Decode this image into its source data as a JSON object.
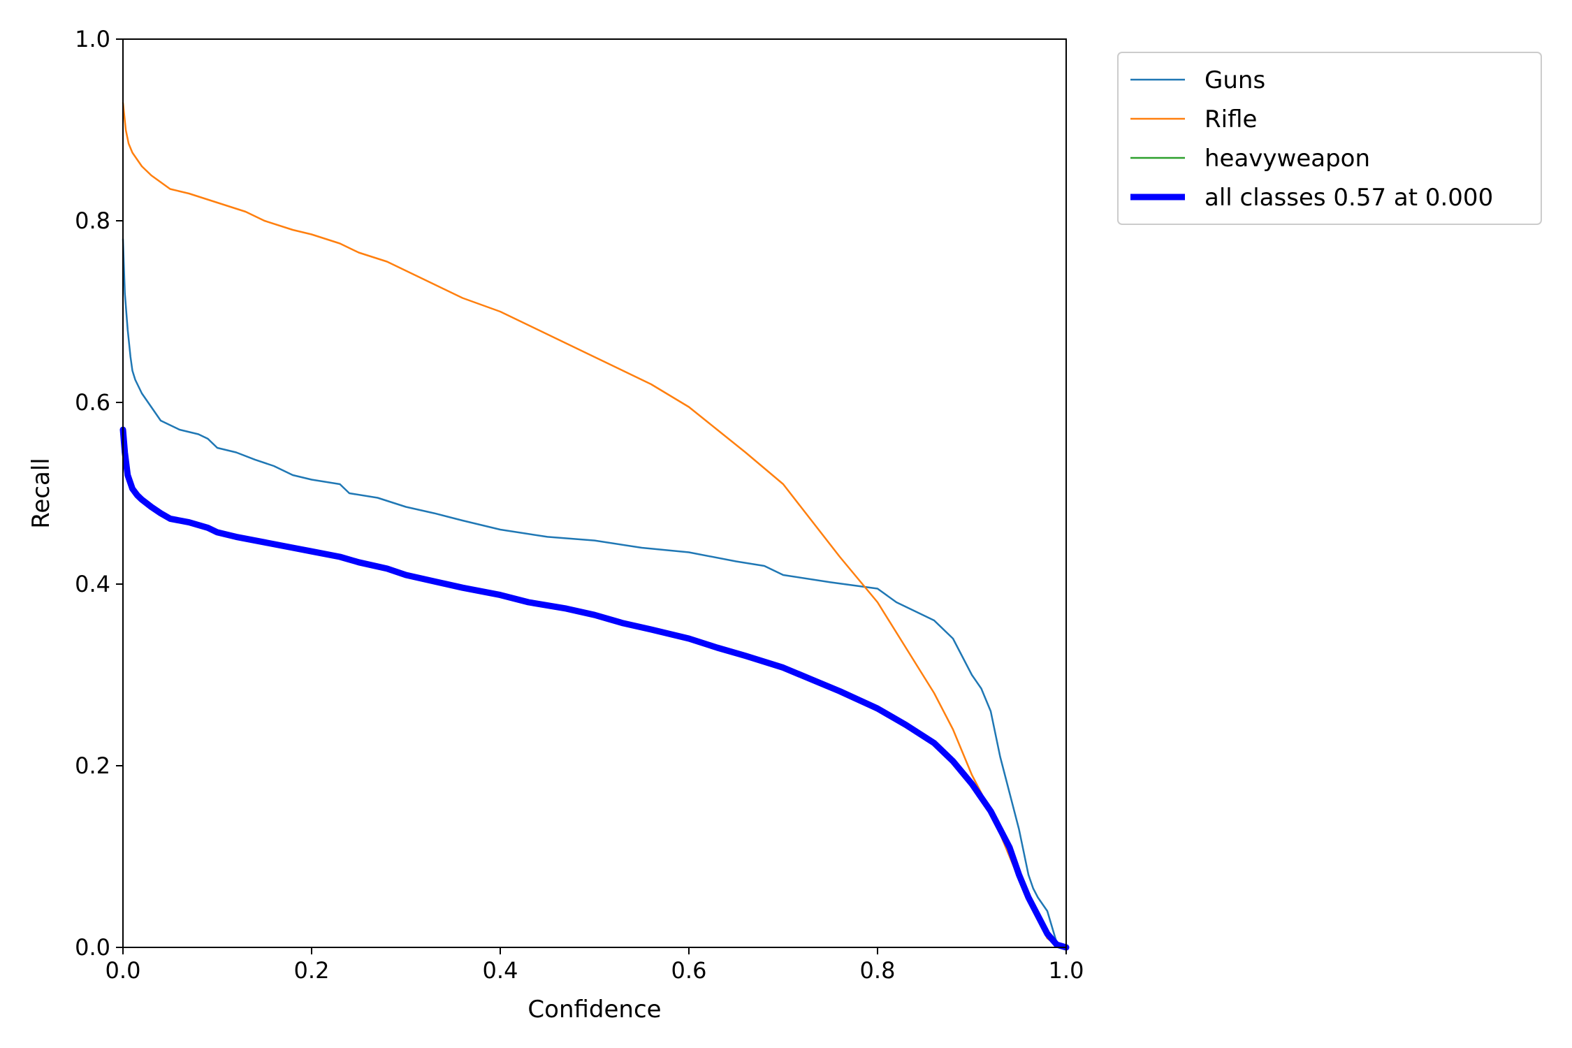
{
  "chart_data": {
    "type": "line",
    "title": "",
    "xlabel": "Confidence",
    "ylabel": "Recall",
    "xlim": [
      0.0,
      1.0
    ],
    "ylim": [
      0.0,
      1.0
    ],
    "xticks": [
      "0.0",
      "0.2",
      "0.4",
      "0.6",
      "0.8",
      "1.0"
    ],
    "yticks": [
      "0.0",
      "0.2",
      "0.4",
      "0.6",
      "0.8",
      "1.0"
    ],
    "grid": false,
    "legend_position": "outside-top-right",
    "series": [
      {
        "name": "Guns",
        "color": "#1f77b4",
        "x": [
          0.0,
          0.002,
          0.005,
          0.008,
          0.01,
          0.013,
          0.02,
          0.03,
          0.04,
          0.05,
          0.06,
          0.08,
          0.09,
          0.1,
          0.12,
          0.14,
          0.16,
          0.18,
          0.2,
          0.23,
          0.24,
          0.27,
          0.3,
          0.33,
          0.36,
          0.4,
          0.45,
          0.5,
          0.55,
          0.6,
          0.65,
          0.68,
          0.7,
          0.75,
          0.8,
          0.82,
          0.84,
          0.86,
          0.88,
          0.89,
          0.9,
          0.91,
          0.92,
          0.93,
          0.94,
          0.95,
          0.96,
          0.965,
          0.97,
          0.98,
          0.99,
          1.0
        ],
        "y": [
          0.78,
          0.72,
          0.68,
          0.65,
          0.635,
          0.625,
          0.61,
          0.595,
          0.58,
          0.575,
          0.57,
          0.565,
          0.56,
          0.55,
          0.545,
          0.537,
          0.53,
          0.52,
          0.515,
          0.51,
          0.5,
          0.495,
          0.485,
          0.478,
          0.47,
          0.46,
          0.452,
          0.448,
          0.44,
          0.435,
          0.425,
          0.42,
          0.41,
          0.402,
          0.395,
          0.38,
          0.37,
          0.36,
          0.34,
          0.32,
          0.3,
          0.285,
          0.26,
          0.21,
          0.17,
          0.13,
          0.08,
          0.065,
          0.055,
          0.04,
          0.005,
          0.0
        ]
      },
      {
        "name": "Rifle",
        "color": "#ff7f0e",
        "x": [
          0.0,
          0.003,
          0.006,
          0.01,
          0.02,
          0.03,
          0.05,
          0.07,
          0.1,
          0.13,
          0.15,
          0.18,
          0.2,
          0.23,
          0.25,
          0.28,
          0.3,
          0.33,
          0.36,
          0.4,
          0.43,
          0.47,
          0.5,
          0.53,
          0.56,
          0.6,
          0.63,
          0.66,
          0.7,
          0.73,
          0.76,
          0.8,
          0.83,
          0.86,
          0.88,
          0.9,
          0.92,
          0.94,
          0.96,
          0.98,
          0.99,
          1.0
        ],
        "y": [
          0.93,
          0.9,
          0.885,
          0.875,
          0.86,
          0.85,
          0.835,
          0.83,
          0.82,
          0.81,
          0.8,
          0.79,
          0.785,
          0.775,
          0.765,
          0.755,
          0.745,
          0.73,
          0.715,
          0.7,
          0.685,
          0.665,
          0.65,
          0.635,
          0.62,
          0.595,
          0.57,
          0.545,
          0.51,
          0.47,
          0.43,
          0.38,
          0.33,
          0.28,
          0.24,
          0.19,
          0.15,
          0.1,
          0.05,
          0.01,
          0.002,
          0.0
        ]
      },
      {
        "name": "heavyweapon",
        "color": "#2ca02c",
        "x": [],
        "y": []
      },
      {
        "name": "all classes 0.57 at 0.000",
        "color": "#0000ff",
        "thick": true,
        "x": [
          0.0,
          0.002,
          0.005,
          0.01,
          0.015,
          0.02,
          0.03,
          0.04,
          0.05,
          0.07,
          0.09,
          0.1,
          0.12,
          0.15,
          0.18,
          0.2,
          0.23,
          0.25,
          0.28,
          0.3,
          0.33,
          0.36,
          0.4,
          0.43,
          0.47,
          0.5,
          0.53,
          0.56,
          0.6,
          0.63,
          0.66,
          0.7,
          0.73,
          0.76,
          0.8,
          0.83,
          0.86,
          0.88,
          0.9,
          0.92,
          0.94,
          0.95,
          0.96,
          0.97,
          0.98,
          0.99,
          1.0
        ],
        "y": [
          0.57,
          0.545,
          0.52,
          0.505,
          0.498,
          0.493,
          0.485,
          0.478,
          0.472,
          0.468,
          0.462,
          0.457,
          0.452,
          0.446,
          0.44,
          0.436,
          0.43,
          0.424,
          0.417,
          0.41,
          0.403,
          0.396,
          0.388,
          0.38,
          0.373,
          0.366,
          0.357,
          0.35,
          0.34,
          0.33,
          0.321,
          0.308,
          0.295,
          0.282,
          0.263,
          0.245,
          0.225,
          0.205,
          0.18,
          0.15,
          0.11,
          0.08,
          0.055,
          0.035,
          0.015,
          0.003,
          0.0
        ]
      }
    ]
  }
}
